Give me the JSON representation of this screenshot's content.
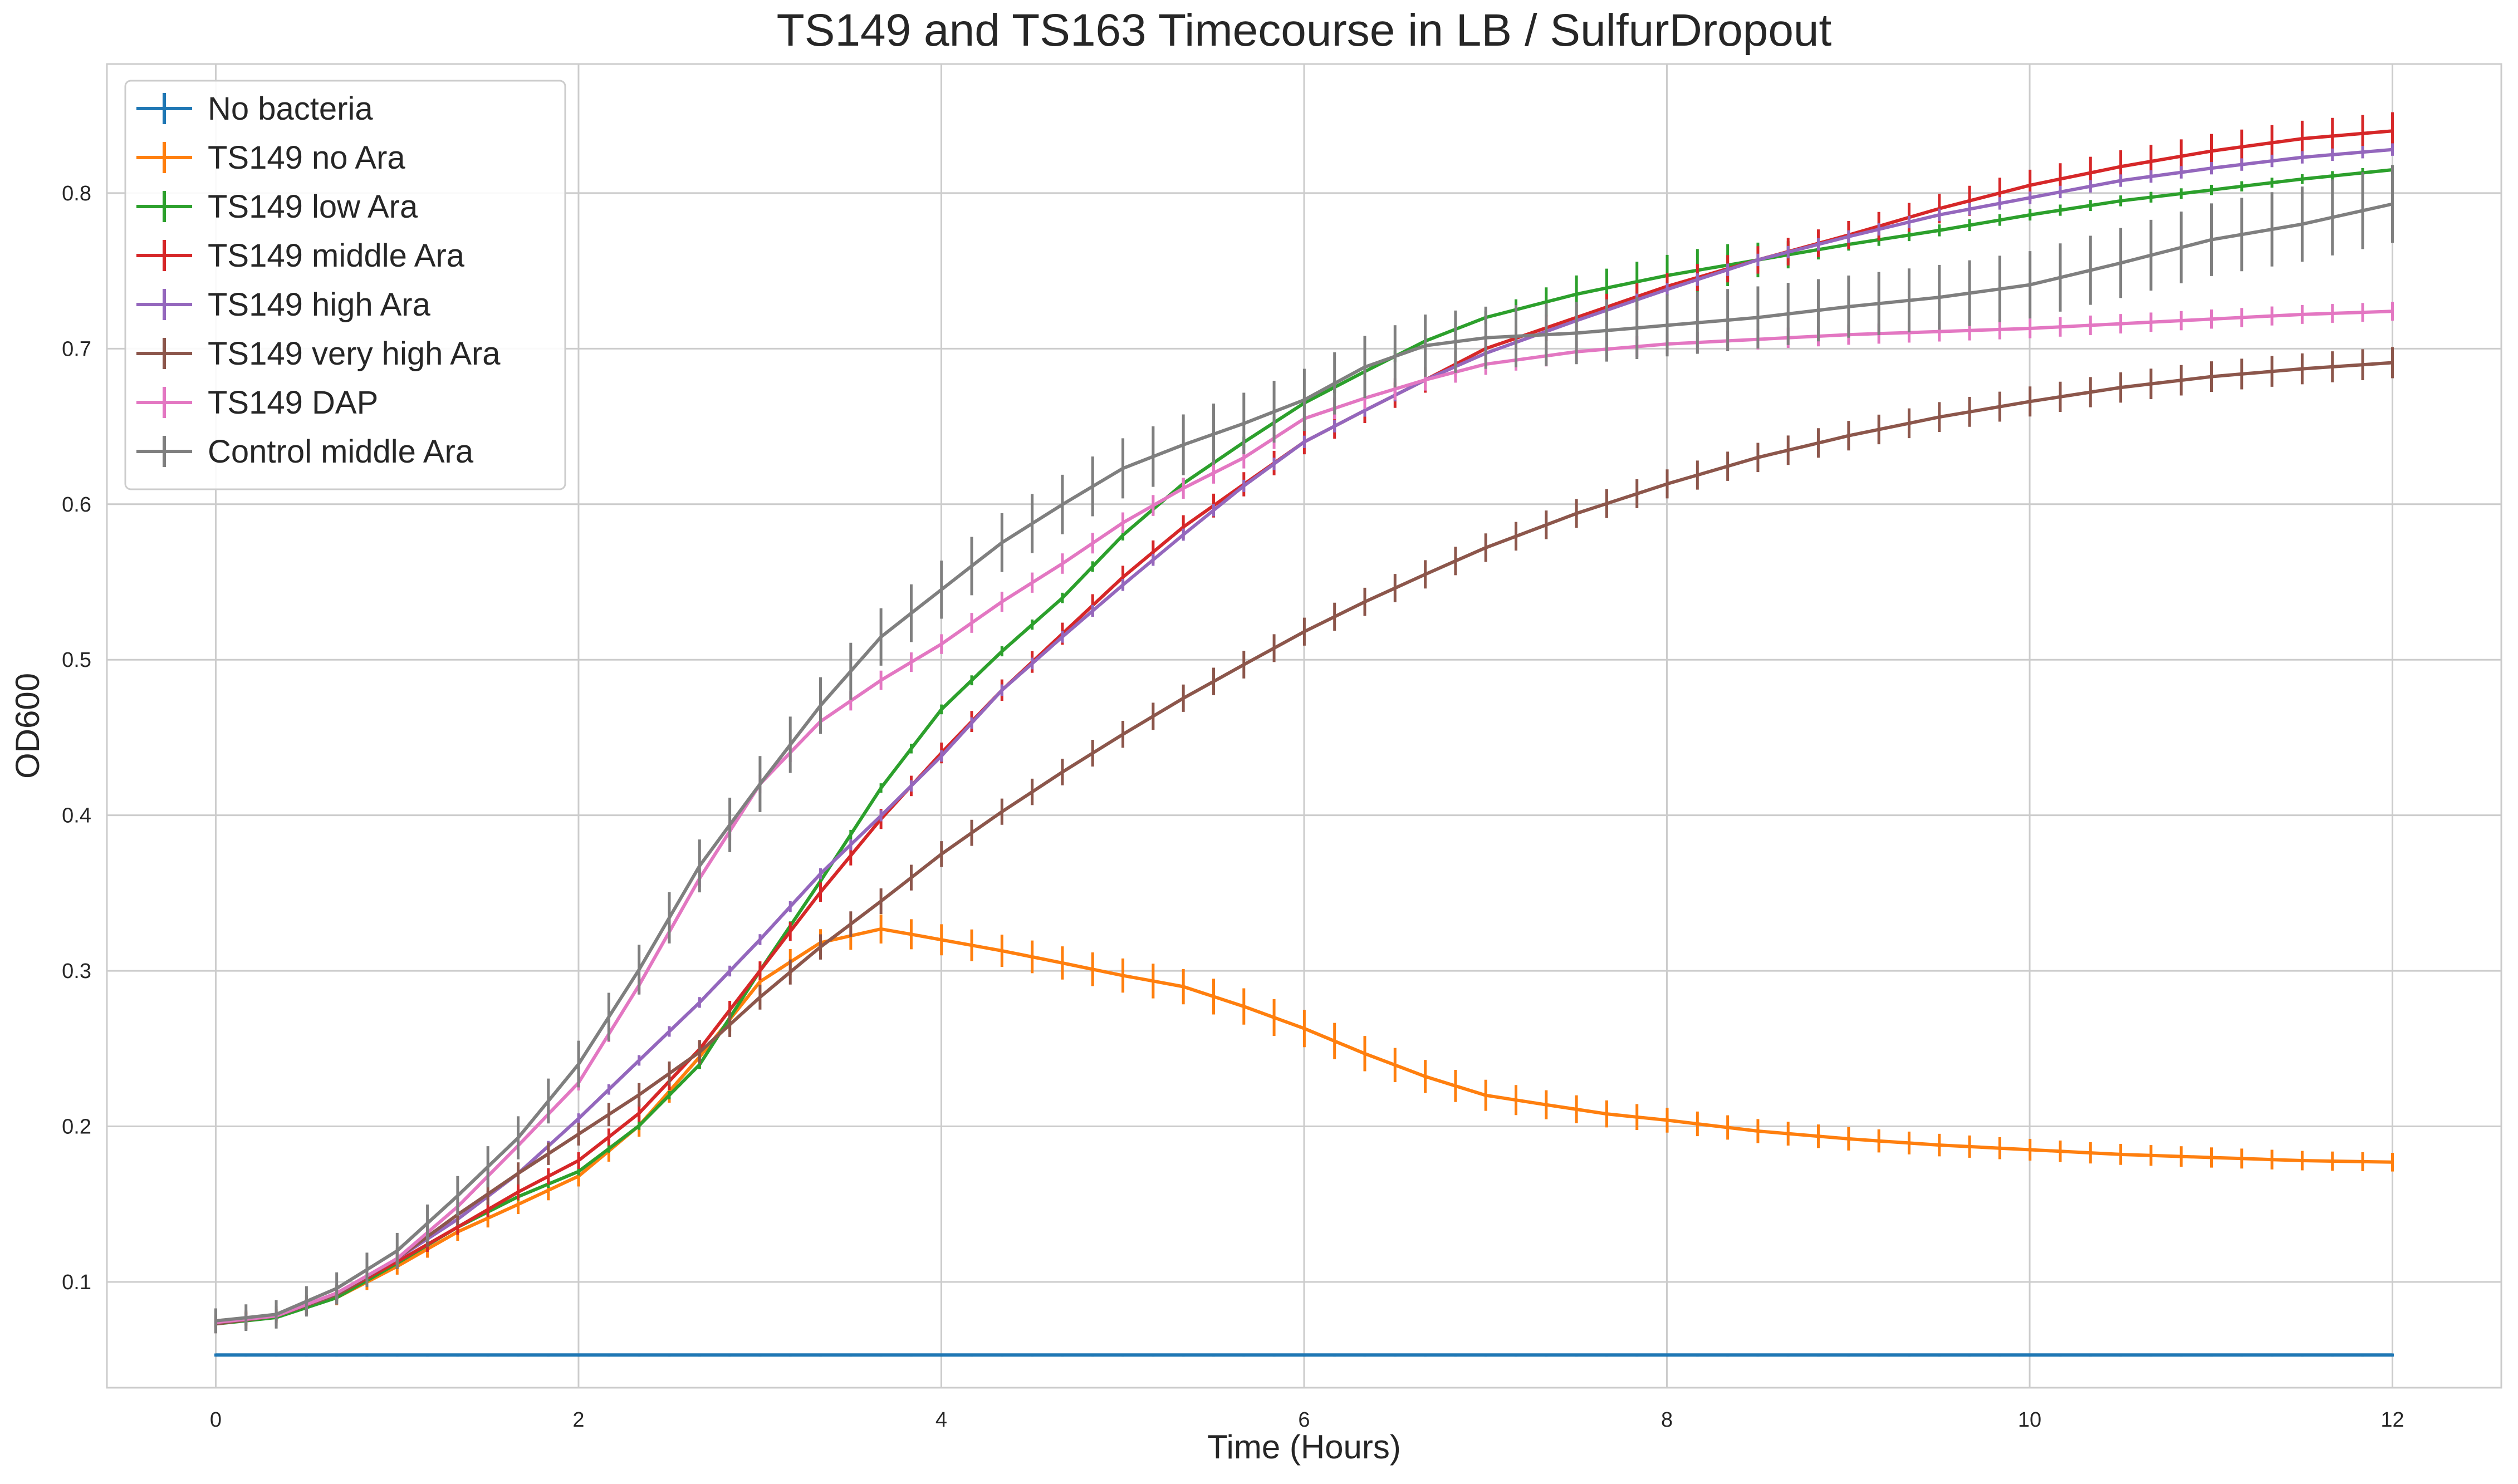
{
  "chart_data": {
    "type": "line",
    "title": "TS149 and TS163 Timecourse in LB / SulfurDropout",
    "xlabel": "Time (Hours)",
    "ylabel": "OD600",
    "xlim": [
      -0.6,
      12.6
    ],
    "ylim": [
      0.032,
      0.883
    ],
    "x_ticks": [
      0,
      2,
      4,
      6,
      8,
      10,
      12
    ],
    "x_tick_labels": [
      "0",
      "2",
      "4",
      "6",
      "8",
      "10",
      "12"
    ],
    "y_ticks": [
      0.1,
      0.2,
      0.3,
      0.4,
      0.5,
      0.6,
      0.7,
      0.8
    ],
    "y_tick_labels": [
      "0.1",
      "0.2",
      "0.3",
      "0.4",
      "0.5",
      "0.6",
      "0.7",
      "0.8"
    ],
    "grid": true,
    "legend_position": "top-left",
    "sample_interval_hours": 0.1667,
    "series": [
      {
        "name": "No bacteria",
        "color": "#1f77b4",
        "anchors": [
          [
            0,
            0.053
          ],
          [
            12,
            0.053
          ]
        ],
        "err_anchors": [
          [
            0,
            0.001
          ],
          [
            12,
            0.001
          ]
        ]
      },
      {
        "name": "TS149 no Ara",
        "color": "#ff7f0e",
        "anchors": [
          [
            0,
            0.075
          ],
          [
            0.33,
            0.078
          ],
          [
            0.67,
            0.09
          ],
          [
            1,
            0.11
          ],
          [
            1.33,
            0.132
          ],
          [
            1.67,
            0.15
          ],
          [
            2,
            0.168
          ],
          [
            2.33,
            0.2
          ],
          [
            2.67,
            0.245
          ],
          [
            3,
            0.293
          ],
          [
            3.33,
            0.318
          ],
          [
            3.67,
            0.327
          ],
          [
            4,
            0.32
          ],
          [
            4.33,
            0.313
          ],
          [
            4.67,
            0.305
          ],
          [
            5,
            0.297
          ],
          [
            5.33,
            0.29
          ],
          [
            5.67,
            0.277
          ],
          [
            6,
            0.263
          ],
          [
            6.33,
            0.247
          ],
          [
            6.67,
            0.232
          ],
          [
            7,
            0.22
          ],
          [
            7.33,
            0.214
          ],
          [
            7.67,
            0.208
          ],
          [
            8,
            0.204
          ],
          [
            8.5,
            0.197
          ],
          [
            9,
            0.192
          ],
          [
            9.5,
            0.188
          ],
          [
            10,
            0.185
          ],
          [
            10.5,
            0.182
          ],
          [
            11,
            0.18
          ],
          [
            11.5,
            0.178
          ],
          [
            12,
            0.177
          ]
        ],
        "err_anchors": [
          [
            0,
            0.004
          ],
          [
            3,
            0.008
          ],
          [
            4,
            0.01
          ],
          [
            6,
            0.012
          ],
          [
            8,
            0.008
          ],
          [
            12,
            0.006
          ]
        ]
      },
      {
        "name": "TS149 low Ara",
        "color": "#2ca02c",
        "anchors": [
          [
            0,
            0.073
          ],
          [
            0.33,
            0.077
          ],
          [
            0.67,
            0.09
          ],
          [
            1,
            0.112
          ],
          [
            1.33,
            0.135
          ],
          [
            1.67,
            0.155
          ],
          [
            2,
            0.171
          ],
          [
            2.33,
            0.2
          ],
          [
            2.67,
            0.24
          ],
          [
            3,
            0.3
          ],
          [
            3.33,
            0.357
          ],
          [
            3.67,
            0.418
          ],
          [
            4,
            0.468
          ],
          [
            4.33,
            0.505
          ],
          [
            4.67,
            0.54
          ],
          [
            5,
            0.58
          ],
          [
            5.33,
            0.613
          ],
          [
            5.67,
            0.64
          ],
          [
            6,
            0.665
          ],
          [
            6.33,
            0.685
          ],
          [
            6.67,
            0.705
          ],
          [
            7,
            0.72
          ],
          [
            7.5,
            0.735
          ],
          [
            8,
            0.747
          ],
          [
            8.5,
            0.757
          ],
          [
            9,
            0.767
          ],
          [
            9.5,
            0.776
          ],
          [
            10,
            0.786
          ],
          [
            10.5,
            0.795
          ],
          [
            11,
            0.802
          ],
          [
            11.5,
            0.809
          ],
          [
            12,
            0.815
          ]
        ],
        "err_anchors": [
          [
            0,
            0.002
          ],
          [
            7,
            0.004
          ],
          [
            7.5,
            0.012
          ],
          [
            8.3,
            0.014
          ],
          [
            9,
            0.004
          ],
          [
            12,
            0.003
          ]
        ]
      },
      {
        "name": "TS149 middle Ara",
        "color": "#d62728",
        "anchors": [
          [
            0,
            0.074
          ],
          [
            0.33,
            0.078
          ],
          [
            0.67,
            0.092
          ],
          [
            1,
            0.113
          ],
          [
            1.33,
            0.135
          ],
          [
            1.67,
            0.158
          ],
          [
            2,
            0.178
          ],
          [
            2.33,
            0.208
          ],
          [
            2.67,
            0.25
          ],
          [
            3,
            0.3
          ],
          [
            3.33,
            0.35
          ],
          [
            3.67,
            0.398
          ],
          [
            4,
            0.44
          ],
          [
            4.33,
            0.48
          ],
          [
            4.67,
            0.517
          ],
          [
            5,
            0.553
          ],
          [
            5.33,
            0.585
          ],
          [
            5.67,
            0.613
          ],
          [
            6,
            0.64
          ],
          [
            6.33,
            0.66
          ],
          [
            6.67,
            0.68
          ],
          [
            7,
            0.7
          ],
          [
            7.5,
            0.72
          ],
          [
            8,
            0.74
          ],
          [
            8.5,
            0.757
          ],
          [
            9,
            0.773
          ],
          [
            9.5,
            0.79
          ],
          [
            10,
            0.805
          ],
          [
            10.5,
            0.817
          ],
          [
            11,
            0.827
          ],
          [
            11.5,
            0.835
          ],
          [
            12,
            0.84
          ]
        ],
        "err_anchors": [
          [
            0,
            0.004
          ],
          [
            6,
            0.008
          ],
          [
            9,
            0.009
          ],
          [
            12,
            0.012
          ]
        ]
      },
      {
        "name": "TS149 high Ara",
        "color": "#9467bd",
        "anchors": [
          [
            0,
            0.074
          ],
          [
            0.33,
            0.078
          ],
          [
            0.67,
            0.092
          ],
          [
            1,
            0.115
          ],
          [
            1.33,
            0.14
          ],
          [
            1.67,
            0.17
          ],
          [
            2,
            0.205
          ],
          [
            2.33,
            0.242
          ],
          [
            2.67,
            0.28
          ],
          [
            3,
            0.32
          ],
          [
            3.33,
            0.362
          ],
          [
            3.67,
            0.4
          ],
          [
            4,
            0.438
          ],
          [
            4.33,
            0.48
          ],
          [
            4.67,
            0.515
          ],
          [
            5,
            0.548
          ],
          [
            5.33,
            0.58
          ],
          [
            5.67,
            0.612
          ],
          [
            6,
            0.64
          ],
          [
            6.33,
            0.66
          ],
          [
            6.67,
            0.68
          ],
          [
            7,
            0.697
          ],
          [
            7.5,
            0.718
          ],
          [
            8,
            0.738
          ],
          [
            8.5,
            0.757
          ],
          [
            9,
            0.772
          ],
          [
            9.5,
            0.786
          ],
          [
            10,
            0.797
          ],
          [
            10.5,
            0.808
          ],
          [
            11,
            0.816
          ],
          [
            11.5,
            0.823
          ],
          [
            12,
            0.828
          ]
        ],
        "err_anchors": [
          [
            0,
            0.003
          ],
          [
            6,
            0.004
          ],
          [
            12,
            0.004
          ]
        ]
      },
      {
        "name": "TS149 very high Ara",
        "color": "#8c564b",
        "anchors": [
          [
            0,
            0.073
          ],
          [
            0.33,
            0.078
          ],
          [
            0.67,
            0.092
          ],
          [
            1,
            0.115
          ],
          [
            1.33,
            0.143
          ],
          [
            1.67,
            0.17
          ],
          [
            2,
            0.195
          ],
          [
            2.33,
            0.22
          ],
          [
            2.67,
            0.248
          ],
          [
            3,
            0.283
          ],
          [
            3.33,
            0.315
          ],
          [
            3.67,
            0.345
          ],
          [
            4,
            0.375
          ],
          [
            4.33,
            0.402
          ],
          [
            4.67,
            0.428
          ],
          [
            5,
            0.452
          ],
          [
            5.33,
            0.475
          ],
          [
            5.67,
            0.497
          ],
          [
            6,
            0.518
          ],
          [
            6.33,
            0.537
          ],
          [
            6.67,
            0.555
          ],
          [
            7,
            0.572
          ],
          [
            7.5,
            0.594
          ],
          [
            8,
            0.613
          ],
          [
            8.5,
            0.63
          ],
          [
            9,
            0.644
          ],
          [
            9.5,
            0.656
          ],
          [
            10,
            0.666
          ],
          [
            10.5,
            0.675
          ],
          [
            11,
            0.682
          ],
          [
            11.5,
            0.687
          ],
          [
            12,
            0.691
          ]
        ],
        "err_anchors": [
          [
            0,
            0.006
          ],
          [
            3,
            0.008
          ],
          [
            6,
            0.009
          ],
          [
            12,
            0.01
          ]
        ]
      },
      {
        "name": "TS149 DAP",
        "color": "#e377c2",
        "anchors": [
          [
            0,
            0.074
          ],
          [
            0.33,
            0.078
          ],
          [
            0.67,
            0.093
          ],
          [
            1,
            0.115
          ],
          [
            1.33,
            0.148
          ],
          [
            1.67,
            0.188
          ],
          [
            2,
            0.228
          ],
          [
            2.33,
            0.29
          ],
          [
            2.67,
            0.36
          ],
          [
            3,
            0.42
          ],
          [
            3.33,
            0.46
          ],
          [
            3.67,
            0.487
          ],
          [
            4,
            0.51
          ],
          [
            4.33,
            0.537
          ],
          [
            4.67,
            0.562
          ],
          [
            5,
            0.588
          ],
          [
            5.33,
            0.61
          ],
          [
            5.67,
            0.63
          ],
          [
            6,
            0.655
          ],
          [
            6.33,
            0.668
          ],
          [
            6.67,
            0.68
          ],
          [
            7,
            0.69
          ],
          [
            7.5,
            0.698
          ],
          [
            8,
            0.703
          ],
          [
            8.5,
            0.706
          ],
          [
            9,
            0.709
          ],
          [
            9.5,
            0.711
          ],
          [
            10,
            0.713
          ],
          [
            10.5,
            0.716
          ],
          [
            11,
            0.719
          ],
          [
            11.5,
            0.722
          ],
          [
            12,
            0.724
          ]
        ],
        "err_anchors": [
          [
            0,
            0.003
          ],
          [
            3,
            0.006
          ],
          [
            6,
            0.007
          ],
          [
            12,
            0.006
          ]
        ]
      },
      {
        "name": "Control middle Ara",
        "color": "#7f7f7f",
        "anchors": [
          [
            0,
            0.075
          ],
          [
            0.33,
            0.079
          ],
          [
            0.67,
            0.096
          ],
          [
            1,
            0.12
          ],
          [
            1.33,
            0.155
          ],
          [
            1.67,
            0.193
          ],
          [
            2,
            0.24
          ],
          [
            2.33,
            0.3
          ],
          [
            2.67,
            0.368
          ],
          [
            3,
            0.42
          ],
          [
            3.33,
            0.47
          ],
          [
            3.67,
            0.515
          ],
          [
            4,
            0.545
          ],
          [
            4.33,
            0.575
          ],
          [
            4.67,
            0.6
          ],
          [
            5,
            0.623
          ],
          [
            5.33,
            0.638
          ],
          [
            5.67,
            0.652
          ],
          [
            6,
            0.667
          ],
          [
            6.33,
            0.688
          ],
          [
            6.67,
            0.702
          ],
          [
            7,
            0.707
          ],
          [
            7.5,
            0.71
          ],
          [
            8,
            0.715
          ],
          [
            8.5,
            0.72
          ],
          [
            9,
            0.727
          ],
          [
            9.5,
            0.733
          ],
          [
            10,
            0.741
          ],
          [
            10.5,
            0.755
          ],
          [
            11,
            0.77
          ],
          [
            11.5,
            0.78
          ],
          [
            12,
            0.793
          ]
        ],
        "err_anchors": [
          [
            0,
            0.008
          ],
          [
            2,
            0.015
          ],
          [
            3,
            0.018
          ],
          [
            6,
            0.02
          ],
          [
            9,
            0.02
          ],
          [
            12,
            0.025
          ]
        ]
      }
    ]
  }
}
